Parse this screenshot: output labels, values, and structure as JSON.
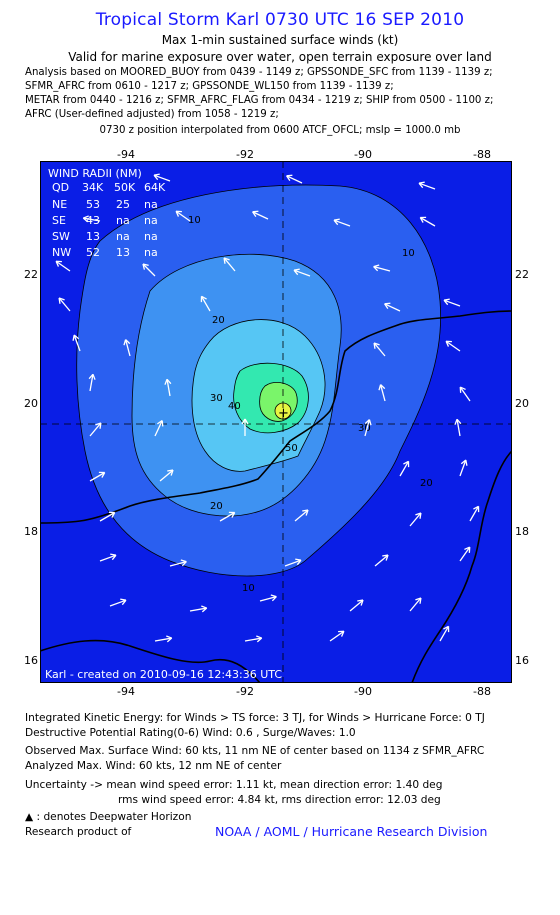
{
  "header": {
    "title": "Tropical Storm Karl 0730 UTC 16 SEP 2010",
    "subtitle1": "Max 1-min sustained surface winds (kt)",
    "subtitle2": "Valid for marine exposure over water, open terrain exposure over land",
    "analysis_lines": [
      "Analysis based on MOORED_BUOY from 0439 - 1149 z; GPSSONDE_SFC from 1139 - 1139 z;",
      "SFMR_AFRC from 0610 - 1217 z; GPSSONDE_WL150 from 1139 - 1139 z;",
      "METAR from 0440 - 1216 z; SFMR_AFRC_FLAG from 0434 - 1219 z; SHIP from 0500 - 1100 z;",
      "AFRC (User-defined adjusted) from 1058 - 1219 z;"
    ],
    "position_note": "0730 z position interpolated from 0600 ATCF_OFCL; mslp = 1000.0 mb"
  },
  "map": {
    "lon_ticks": [
      "-94",
      "-92",
      "-90",
      "-88"
    ],
    "lat_ticks": [
      "22",
      "20",
      "18",
      "16"
    ],
    "lon_range": [
      -95.4,
      -87.4
    ],
    "lat_range": [
      15.7,
      23.9
    ],
    "center": {
      "lon": -91.4,
      "lat": 19.8
    },
    "contour_labels": [
      "10",
      "20",
      "30",
      "40",
      "50",
      "10",
      "10",
      "20",
      "30",
      "20"
    ],
    "wind_radii": {
      "title": "WIND RADII (NM)",
      "header": [
        "QD",
        "34K",
        "50K",
        "64K"
      ],
      "rows": [
        [
          "NE",
          "53",
          "25",
          "na"
        ],
        [
          "SE",
          "43",
          "na",
          "na"
        ],
        [
          "SW",
          "13",
          "na",
          "na"
        ],
        [
          "NW",
          "52",
          "13",
          "na"
        ]
      ]
    },
    "credit": "Karl - created on 2010-09-16 12:43:36 UTC",
    "colors": {
      "outer": "#0a1ee6",
      "c10": "#2a5ff0",
      "c20": "#3e92f2",
      "c30": "#56c6f4",
      "c40": "#33e8b0",
      "c50": "#7af56a",
      "core": "#e8f542"
    }
  },
  "footer": {
    "ike": "Integrated Kinetic Energy:  for Winds > TS force: 3 TJ,  for Winds > Hurricane Force: 0 TJ",
    "dpr": "Destructive Potential Rating(0-6)   Wind: 0.6 , Surge/Waves: 1.0",
    "observed": "Observed Max. Surface Wind: 60 kts, 11 nm NE of center based on 1134 z SFMR_AFRC",
    "analyzed": "Analyzed Max. Wind: 60 kts, 12 nm NE of center",
    "uncertainty1": "Uncertainty -> mean wind speed error: 1.11 kt,   mean direction error: 1.40 deg",
    "uncertainty2": "rms wind speed error: 4.84 kt,   rms direction error: 12.03 deg",
    "legend": "▲ : denotes Deepwater Horizon",
    "research": "Research product of",
    "credit": "NOAA / AOML / Hurricane Research Division"
  }
}
